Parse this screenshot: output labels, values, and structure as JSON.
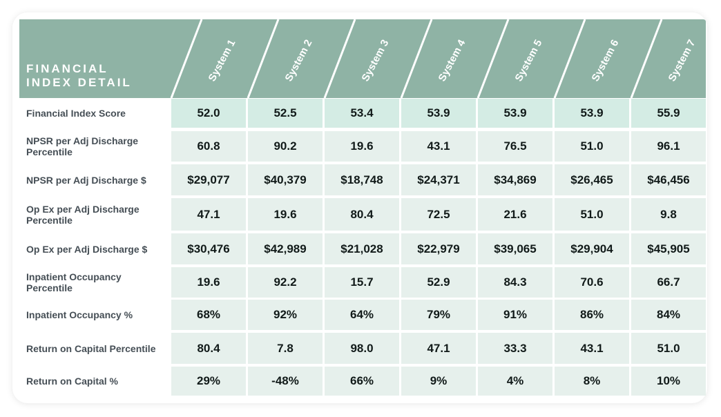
{
  "colors": {
    "header_bg": "#8fb3a5",
    "score_cell_bg": "#d4ece4",
    "data_cell_bg": "#e6f0ec",
    "separator": "#ffffff",
    "row_label_text": "#454e55"
  },
  "table": {
    "title": "FINANCIAL\nINDEX DETAIL",
    "columns": [
      "System 1",
      "System 2",
      "System 3",
      "System 4",
      "System 5",
      "System 6",
      "System 7"
    ],
    "rows": [
      {
        "label": "Financial Index Score",
        "values": [
          "52.0",
          "52.5",
          "53.4",
          "53.9",
          "53.9",
          "53.9",
          "55.9"
        ]
      },
      {
        "label": "NPSR per Adj Discharge Percentile",
        "values": [
          "60.8",
          "90.2",
          "19.6",
          "43.1",
          "76.5",
          "51.0",
          "96.1"
        ]
      },
      {
        "label": "NPSR per Adj Discharge $",
        "values": [
          "$29,077",
          "$40,379",
          "$18,748",
          "$24,371",
          "$34,869",
          "$26,465",
          "$46,456"
        ]
      },
      {
        "label": "Op Ex per Adj Discharge Percentile",
        "values": [
          "47.1",
          "19.6",
          "80.4",
          "72.5",
          "21.6",
          "51.0",
          "9.8"
        ]
      },
      {
        "label": "Op Ex per Adj Discharge $",
        "values": [
          "$30,476",
          "$42,989",
          "$21,028",
          "$22,979",
          "$39,065",
          "$29,904",
          "$45,905"
        ]
      },
      {
        "label": "Inpatient Occupancy Percentile",
        "values": [
          "19.6",
          "92.2",
          "15.7",
          "52.9",
          "84.3",
          "70.6",
          "66.7"
        ]
      },
      {
        "label": "Inpatient Occupancy %",
        "values": [
          "68%",
          "92%",
          "64%",
          "79%",
          "91%",
          "86%",
          "84%"
        ]
      },
      {
        "label": "Return on Capital Percentile",
        "values": [
          "80.4",
          "7.8",
          "98.0",
          "47.1",
          "33.3",
          "43.1",
          "51.0"
        ]
      },
      {
        "label": "Return on Capital %",
        "values": [
          "29%",
          "-48%",
          "66%",
          "9%",
          "4%",
          "8%",
          "10%"
        ]
      }
    ]
  },
  "chart_data": {
    "type": "table",
    "title": "FINANCIAL INDEX DETAIL",
    "columns": [
      "System 1",
      "System 2",
      "System 3",
      "System 4",
      "System 5",
      "System 6",
      "System 7"
    ],
    "rows": [
      {
        "label": "Financial Index Score",
        "values": [
          52.0,
          52.5,
          53.4,
          53.9,
          53.9,
          53.9,
          55.9
        ]
      },
      {
        "label": "NPSR per Adj Discharge Percentile",
        "values": [
          60.8,
          90.2,
          19.6,
          43.1,
          76.5,
          51.0,
          96.1
        ]
      },
      {
        "label": "NPSR per Adj Discharge $",
        "values": [
          29077,
          40379,
          18748,
          24371,
          34869,
          26465,
          46456
        ]
      },
      {
        "label": "Op Ex per Adj Discharge Percentile",
        "values": [
          47.1,
          19.6,
          80.4,
          72.5,
          21.6,
          51.0,
          9.8
        ]
      },
      {
        "label": "Op Ex per Adj Discharge $",
        "values": [
          30476,
          42989,
          21028,
          22979,
          39065,
          29904,
          45905
        ]
      },
      {
        "label": "Inpatient Occupancy Percentile",
        "values": [
          19.6,
          92.2,
          15.7,
          52.9,
          84.3,
          70.6,
          66.7
        ]
      },
      {
        "label": "Inpatient Occupancy %",
        "values": [
          68,
          92,
          64,
          79,
          91,
          86,
          84
        ]
      },
      {
        "label": "Return on Capital Percentile",
        "values": [
          80.4,
          7.8,
          98.0,
          47.1,
          33.3,
          43.1,
          51.0
        ]
      },
      {
        "label": "Return on Capital %",
        "values": [
          29,
          -48,
          66,
          9,
          4,
          8,
          10
        ]
      }
    ]
  }
}
